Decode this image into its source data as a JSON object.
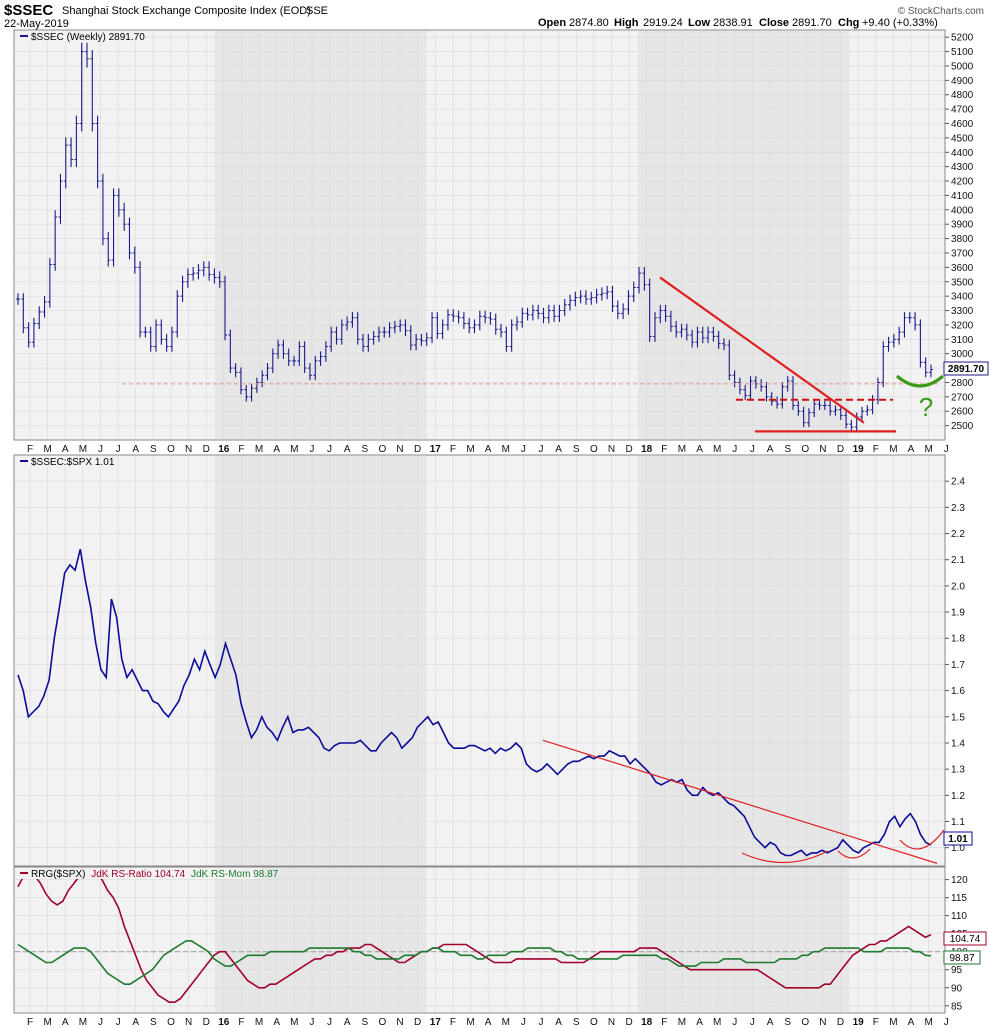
{
  "header": {
    "symbol": "$SSEC",
    "name": "Shanghai Stock Exchange Composite Index (EOD)",
    "exchange": "SSE",
    "date": "22-May-2019",
    "watermark": "© StockCharts.com",
    "ohlc": [
      {
        "k": "Open",
        "v": "2874.80"
      },
      {
        "k": "High",
        "v": "2919.24"
      },
      {
        "k": "Low",
        "v": "2838.91"
      },
      {
        "k": "Close",
        "v": "2891.70"
      },
      {
        "k": "Chg",
        "v": "+9.40 (+0.33%)"
      }
    ]
  },
  "colors": {
    "price": "#1a1a8c",
    "ratio_line": "#0b0b9a",
    "rs_ratio": "#a0002a",
    "rs_mom": "#1e7a2e",
    "annotation_red": "#e02020",
    "annotation_green": "#3a9a1a",
    "band": "#e6e6e6",
    "panel_bg": "#f2f2f2",
    "grid": "#d8d8d8"
  },
  "x_axis": {
    "labels": [
      "F",
      "M",
      "A",
      "M",
      "J",
      "J",
      "A",
      "S",
      "O",
      "N",
      "D",
      "16",
      "F",
      "M",
      "A",
      "M",
      "J",
      "J",
      "A",
      "S",
      "O",
      "N",
      "D",
      "17",
      "F",
      "M",
      "A",
      "M",
      "J",
      "J",
      "A",
      "S",
      "O",
      "N",
      "D",
      "18",
      "F",
      "M",
      "A",
      "M",
      "J",
      "J",
      "A",
      "S",
      "O",
      "N",
      "D",
      "19",
      "F",
      "M",
      "A",
      "M",
      "J"
    ],
    "year_labels": [
      "16",
      "17",
      "18",
      "19"
    ]
  },
  "chart_data": [
    {
      "type": "ohlc",
      "legend": "$SSEC (Weekly) 2891.70",
      "last_value": "2891.70",
      "ylim": [
        2400,
        5250
      ],
      "y_ticks": [
        2500,
        2600,
        2700,
        2800,
        2900,
        3000,
        3100,
        3200,
        3300,
        3400,
        3500,
        3600,
        3700,
        3800,
        3900,
        4000,
        4100,
        4200,
        4300,
        4400,
        4500,
        4600,
        4700,
        4800,
        4900,
        5000,
        5100,
        5200
      ],
      "closes": [
        3380,
        3180,
        3080,
        3210,
        3290,
        3360,
        3620,
        3950,
        4200,
        4450,
        4350,
        4600,
        5100,
        5050,
        4600,
        4200,
        3800,
        3650,
        4100,
        4000,
        3900,
        3700,
        3600,
        3150,
        3150,
        3050,
        3200,
        3100,
        3050,
        3150,
        3400,
        3500,
        3550,
        3560,
        3580,
        3600,
        3550,
        3530,
        3500,
        3130,
        2900,
        2870,
        2750,
        2700,
        2760,
        2800,
        2850,
        2900,
        3000,
        3060,
        3000,
        2950,
        2950,
        3050,
        2900,
        2850,
        2950,
        2980,
        3050,
        3150,
        3100,
        3200,
        3220,
        3250,
        3100,
        3050,
        3100,
        3120,
        3150,
        3150,
        3180,
        3190,
        3200,
        3160,
        3060,
        3100,
        3090,
        3110,
        3250,
        3140,
        3200,
        3270,
        3260,
        3250,
        3210,
        3180,
        3200,
        3260,
        3250,
        3240,
        3170,
        3150,
        3050,
        3200,
        3220,
        3280,
        3270,
        3300,
        3280,
        3250,
        3300,
        3260,
        3300,
        3340,
        3370,
        3390,
        3400,
        3380,
        3390,
        3410,
        3420,
        3430,
        3330,
        3280,
        3310,
        3400,
        3460,
        3560,
        3480,
        3120,
        3250,
        3300,
        3260,
        3190,
        3150,
        3170,
        3130,
        3080,
        3150,
        3110,
        3150,
        3120,
        3070,
        3060,
        2850,
        2800,
        2750,
        2710,
        2810,
        2790,
        2770,
        2700,
        2670,
        2650,
        2770,
        2810,
        2640,
        2600,
        2520,
        2590,
        2650,
        2640,
        2640,
        2600,
        2610,
        2570,
        2510,
        2490,
        2560,
        2600,
        2610,
        2680,
        2800,
        3050,
        3080,
        3100,
        3150,
        3250,
        3250,
        3200,
        2940,
        2870,
        2890
      ]
    },
    {
      "type": "line",
      "legend": "$SSEC:$SPX 1.01",
      "last_value": "1.01",
      "ylim": [
        0.93,
        2.5
      ],
      "y_ticks": [
        1.0,
        1.1,
        1.2,
        1.3,
        1.4,
        1.5,
        1.6,
        1.7,
        1.8,
        1.9,
        2.0,
        2.1,
        2.2,
        2.3,
        2.4
      ],
      "y_tick_labels": [
        "1.0",
        "1.1",
        "1.2",
        "1.3",
        "1.4",
        "1.5",
        "1.6",
        "1.7",
        "1.8",
        "1.9",
        "2.0",
        "2.1",
        "2.2",
        "2.3",
        "2.4"
      ],
      "values": [
        1.66,
        1.6,
        1.5,
        1.52,
        1.54,
        1.58,
        1.64,
        1.8,
        1.92,
        2.05,
        2.08,
        2.06,
        2.14,
        2.02,
        1.92,
        1.78,
        1.68,
        1.65,
        1.95,
        1.88,
        1.72,
        1.65,
        1.68,
        1.64,
        1.6,
        1.6,
        1.56,
        1.55,
        1.52,
        1.5,
        1.53,
        1.56,
        1.62,
        1.66,
        1.72,
        1.68,
        1.75,
        1.7,
        1.65,
        1.7,
        1.78,
        1.72,
        1.66,
        1.55,
        1.48,
        1.42,
        1.45,
        1.5,
        1.46,
        1.44,
        1.41,
        1.46,
        1.5,
        1.44,
        1.45,
        1.45,
        1.46,
        1.44,
        1.42,
        1.38,
        1.37,
        1.39,
        1.4,
        1.4,
        1.4,
        1.4,
        1.41,
        1.39,
        1.37,
        1.37,
        1.4,
        1.42,
        1.44,
        1.42,
        1.38,
        1.4,
        1.42,
        1.46,
        1.48,
        1.5,
        1.47,
        1.48,
        1.44,
        1.4,
        1.38,
        1.38,
        1.38,
        1.39,
        1.39,
        1.38,
        1.37,
        1.38,
        1.36,
        1.38,
        1.37,
        1.38,
        1.4,
        1.38,
        1.32,
        1.3,
        1.29,
        1.3,
        1.32,
        1.3,
        1.28,
        1.3,
        1.32,
        1.33,
        1.33,
        1.34,
        1.35,
        1.34,
        1.35,
        1.35,
        1.37,
        1.36,
        1.35,
        1.35,
        1.32,
        1.34,
        1.32,
        1.3,
        1.28,
        1.25,
        1.24,
        1.25,
        1.26,
        1.25,
        1.26,
        1.22,
        1.2,
        1.2,
        1.23,
        1.21,
        1.2,
        1.21,
        1.19,
        1.17,
        1.16,
        1.14,
        1.12,
        1.08,
        1.04,
        1.02,
        1.0,
        1.02,
        1.01,
        0.98,
        0.97,
        0.97,
        0.98,
        0.99,
        0.97,
        0.98,
        0.98,
        0.99,
        0.98,
        0.99,
        1.0,
        1.03,
        1.01,
        0.99,
        0.98,
        1.0,
        1.01,
        1.02,
        1.02,
        1.05,
        1.1,
        1.12,
        1.08,
        1.11,
        1.13,
        1.1,
        1.05,
        1.02,
        1.01
      ]
    },
    {
      "type": "line",
      "legend": "RRG($SPX) JdK RS-Ratio 104.74 JdK RS-Mom 98.87",
      "legend_parts": {
        "prefix": "RRG($SPX)",
        "ratio": "JdK RS-Ratio 104.74",
        "mom": "JdK RS-Mom 98.87"
      },
      "ylim": [
        83,
        123.5
      ],
      "y_ticks": [
        85,
        90,
        95,
        100,
        105,
        110,
        115,
        120
      ],
      "baseline": 100,
      "series": [
        {
          "name": "JdK RS-Ratio",
          "last": "104.74",
          "values": [
            118,
            121,
            122,
            121,
            119,
            116,
            114,
            113,
            114,
            117,
            119,
            121,
            122,
            123,
            122,
            120,
            117,
            115,
            112,
            107,
            103,
            99,
            95,
            92,
            90,
            88,
            87,
            86,
            86,
            87,
            89,
            91,
            93,
            95,
            97,
            99,
            100,
            100,
            98,
            96,
            94,
            92,
            91,
            90,
            90,
            91,
            91,
            92,
            93,
            94,
            95,
            96,
            97,
            98,
            98,
            99,
            99,
            100,
            100,
            101,
            101,
            101,
            102,
            102,
            101,
            100,
            99,
            98,
            97,
            97,
            98,
            99,
            100,
            100,
            101,
            101,
            102,
            102,
            102,
            102,
            102,
            101,
            100,
            99,
            98,
            97,
            97,
            97,
            97,
            98,
            98,
            98,
            98,
            98,
            98,
            98,
            98,
            97,
            97,
            97,
            97,
            97,
            98,
            99,
            100,
            100,
            100,
            100,
            100,
            100,
            100,
            101,
            101,
            101,
            101,
            100,
            99,
            98,
            97,
            96,
            95,
            95,
            95,
            95,
            95,
            95,
            95,
            95,
            95,
            95,
            95,
            95,
            95,
            94,
            93,
            92,
            91,
            90,
            90,
            90,
            90,
            90,
            90,
            90,
            91,
            91,
            93,
            95,
            97,
            99,
            100,
            101,
            102,
            102,
            103,
            103,
            104,
            105,
            106,
            107,
            106,
            105,
            104,
            104.74
          ]
        },
        {
          "name": "JdK RS-Mom",
          "last": "98.87",
          "values": [
            102,
            101,
            100,
            99,
            98,
            97,
            97,
            98,
            99,
            100,
            101,
            101,
            101,
            100,
            98,
            96,
            94,
            93,
            92,
            91,
            91,
            92,
            93,
            94,
            95,
            97,
            99,
            100,
            101,
            102,
            103,
            103,
            102,
            101,
            100,
            98,
            97,
            96,
            96,
            97,
            98,
            99,
            99,
            99,
            99,
            100,
            100,
            100,
            100,
            100,
            100,
            100,
            101,
            101,
            101,
            101,
            101,
            101,
            101,
            101,
            100,
            100,
            99,
            99,
            98,
            98,
            98,
            98,
            98,
            99,
            99,
            99,
            100,
            100,
            101,
            101,
            100,
            100,
            100,
            99,
            99,
            99,
            98,
            98,
            99,
            99,
            99,
            99,
            100,
            100,
            100,
            101,
            101,
            101,
            101,
            101,
            100,
            100,
            99,
            99,
            98,
            98,
            98,
            98,
            98,
            98,
            98,
            98,
            99,
            99,
            99,
            99,
            99,
            99,
            99,
            98,
            98,
            97,
            96,
            96,
            96,
            96,
            97,
            97,
            97,
            97,
            98,
            98,
            98,
            98,
            97,
            97,
            97,
            97,
            97,
            97,
            98,
            98,
            98,
            98,
            99,
            99,
            100,
            100,
            101,
            101,
            101,
            101,
            101,
            101,
            101,
            100,
            100,
            100,
            100,
            101,
            101,
            101,
            101,
            101,
            100,
            100,
            99,
            98.87
          ]
        }
      ]
    }
  ]
}
